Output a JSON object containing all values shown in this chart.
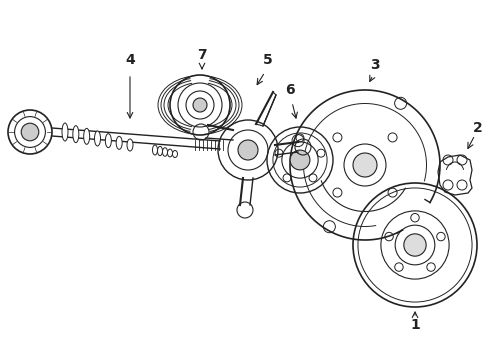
{
  "background_color": "#ffffff",
  "line_color": "#222222",
  "fig_width": 4.9,
  "fig_height": 3.6,
  "dpi": 100,
  "label_fontsize": 10
}
